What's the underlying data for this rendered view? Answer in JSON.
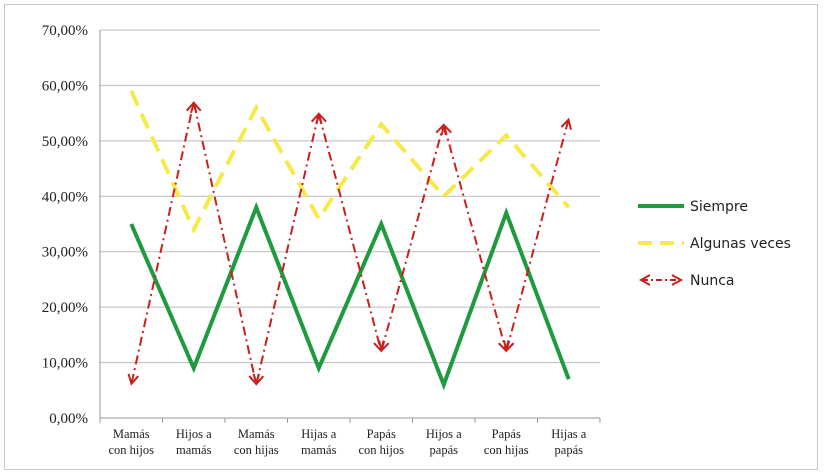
{
  "chart_data": {
    "type": "line",
    "categories": [
      [
        "Mamás",
        "con hijos"
      ],
      [
        "Hijos a",
        "mamás"
      ],
      [
        "Mamás",
        "con hijas"
      ],
      [
        "Hijas a",
        "mamás"
      ],
      [
        "Papás",
        "con hijos"
      ],
      [
        "Hijos a",
        "papás"
      ],
      [
        "Papás",
        "con hijas"
      ],
      [
        "Hijas a",
        "papás"
      ]
    ],
    "ylim": [
      0,
      70
    ],
    "yticks": [
      "0,00%",
      "10,00%",
      "20,00%",
      "30,00%",
      "40,00%",
      "50,00%",
      "60,00%",
      "70,00%"
    ],
    "grid": true,
    "legend_position": "right",
    "series": [
      {
        "name": "Siempre",
        "values": [
          35,
          9,
          38,
          9,
          35,
          6,
          37,
          7
        ],
        "color": "#1f9a3f",
        "style": "solid"
      },
      {
        "name": "Algunas veces",
        "values": [
          59,
          34,
          56,
          36,
          53,
          40,
          51,
          38
        ],
        "color": "#f5ea4a",
        "style": "dashed"
      },
      {
        "name": "Nunca",
        "values": [
          6,
          57,
          6,
          55,
          12,
          53,
          12,
          54
        ],
        "color": "#c8201e",
        "style": "dashdot-arrow"
      }
    ]
  }
}
